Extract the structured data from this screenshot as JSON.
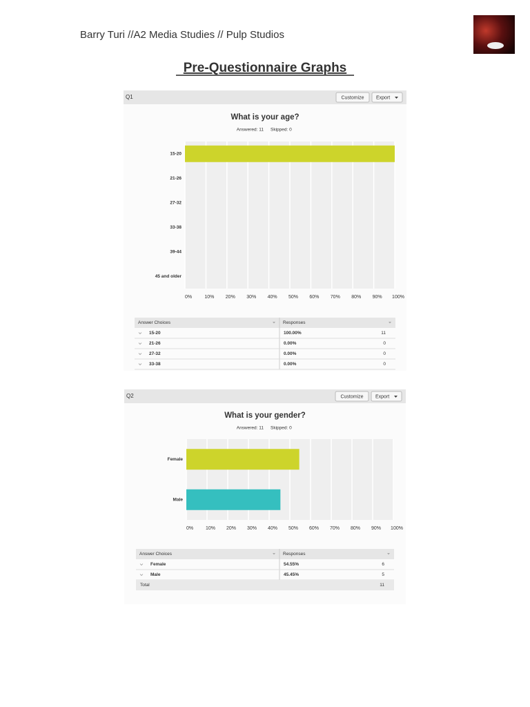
{
  "header": {
    "text": "Barry Turi //A2 Media Studies // Pulp Studios"
  },
  "title": "Pre-Questionnaire Graphs",
  "chart_data": [
    {
      "type": "bar",
      "panel": "Q1",
      "buttons": [
        "Customize",
        "Export"
      ],
      "title": "What is your age?",
      "answered": "Answered: 11",
      "skipped": "Skipped: 0",
      "categories": [
        "15-20",
        "21-26",
        "27-32",
        "33-38",
        "39-44",
        "45 and older"
      ],
      "values": [
        100,
        0,
        0,
        0,
        0,
        0
      ],
      "color": "#cdd42b",
      "xlim": [
        0,
        100
      ],
      "xticks": [
        {
          "value": 0,
          "label": "0%"
        },
        {
          "value": 10,
          "label": "10%"
        },
        {
          "value": 20,
          "label": "20%"
        },
        {
          "value": 30,
          "label": "30%"
        },
        {
          "value": 40,
          "label": "40%"
        },
        {
          "value": 50,
          "label": "50%"
        },
        {
          "value": 60,
          "label": "60%"
        },
        {
          "value": 70,
          "label": "70%"
        },
        {
          "value": 80,
          "label": "80%"
        },
        {
          "value": 90,
          "label": "90%"
        },
        {
          "value": 100,
          "label": "100%"
        }
      ],
      "grid": true,
      "table": {
        "columns": [
          "Answer Choices",
          "Responses"
        ],
        "rows": [
          [
            "15-20",
            "100.00%",
            "11"
          ],
          [
            "21-26",
            "0.00%",
            "0"
          ],
          [
            "27-32",
            "0.00%",
            "0"
          ],
          [
            "33-38",
            "0.00%",
            "0"
          ]
        ]
      }
    },
    {
      "type": "bar",
      "panel": "Q2",
      "buttons": [
        "Customize",
        "Export"
      ],
      "title": "What is your gender?",
      "answered": "Answered: 11",
      "skipped": "Skipped: 0",
      "categories": [
        "Female",
        "Male"
      ],
      "values": [
        54.55,
        45.45
      ],
      "colors": [
        "#cdd42b",
        "#35bfbf"
      ],
      "xlim": [
        0,
        100
      ],
      "xticks": [
        {
          "value": 0,
          "label": "0%"
        },
        {
          "value": 10,
          "label": "10%"
        },
        {
          "value": 20,
          "label": "20%"
        },
        {
          "value": 30,
          "label": "30%"
        },
        {
          "value": 40,
          "label": "40%"
        },
        {
          "value": 50,
          "label": "50%"
        },
        {
          "value": 60,
          "label": "60%"
        },
        {
          "value": 70,
          "label": "70%"
        },
        {
          "value": 80,
          "label": "80%"
        },
        {
          "value": 90,
          "label": "90%"
        },
        {
          "value": 100,
          "label": "100%"
        }
      ],
      "grid": true,
      "table": {
        "columns": [
          "Answer Choices",
          "Responses"
        ],
        "rows": [
          [
            "Female",
            "54.55%",
            "6"
          ],
          [
            "Male",
            "45.45%",
            "5"
          ]
        ],
        "total": [
          "Total",
          "11"
        ]
      }
    }
  ]
}
